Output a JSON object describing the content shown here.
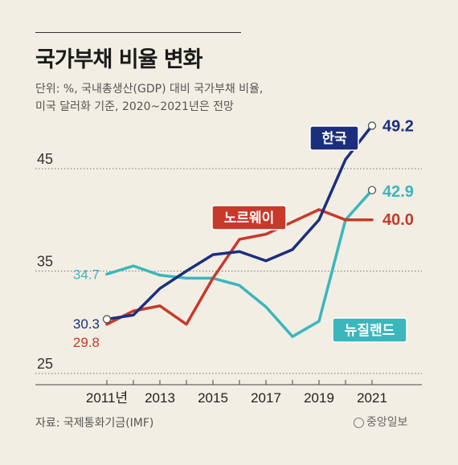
{
  "title": "국가부채 비율 변화",
  "subtitle_line1": "단위: %, 국내총생산(GDP) 대비 국가부채 비율,",
  "subtitle_line2": "미국 달러화 기준, 2020~2021년은 전망",
  "source": "자료: 국제통화기금(IMF)",
  "logo_text": "중앙일보",
  "chart_data": {
    "type": "line",
    "x": [
      2011,
      2012,
      2013,
      2014,
      2015,
      2016,
      2017,
      2018,
      2019,
      2020,
      2021
    ],
    "x_tick_values": [
      2011,
      2013,
      2015,
      2017,
      2019,
      2021
    ],
    "x_tick_labels": [
      "2011년",
      "2013",
      "2015",
      "2017",
      "2019",
      "2021"
    ],
    "y_ticks": [
      25,
      35,
      45
    ],
    "y_tick_labels": [
      "25",
      "35",
      "45"
    ],
    "ylim": [
      25,
      49.8
    ],
    "grid": "dotted-horizontal",
    "series": [
      {
        "name": "한국",
        "color": "#1b2f7e",
        "values": [
          30.3,
          30.7,
          33.3,
          35.0,
          36.6,
          36.9,
          36.0,
          37.1,
          40.0,
          45.9,
          49.2
        ],
        "start_label": "30.3",
        "end_label": "49.2"
      },
      {
        "name": "노르웨이",
        "color": "#c8392b",
        "values": [
          29.8,
          31.1,
          31.6,
          29.8,
          34.3,
          38.1,
          38.6,
          39.8,
          41.0,
          40.0,
          40.0
        ],
        "start_label": "29.8",
        "end_label": "40.0"
      },
      {
        "name": "뉴질랜드",
        "color": "#3bb6bd",
        "values": [
          34.7,
          35.5,
          34.6,
          34.3,
          34.3,
          33.6,
          31.5,
          28.6,
          30.1,
          40.0,
          42.9
        ],
        "start_label": "34.7",
        "end_label": "42.9"
      }
    ]
  }
}
